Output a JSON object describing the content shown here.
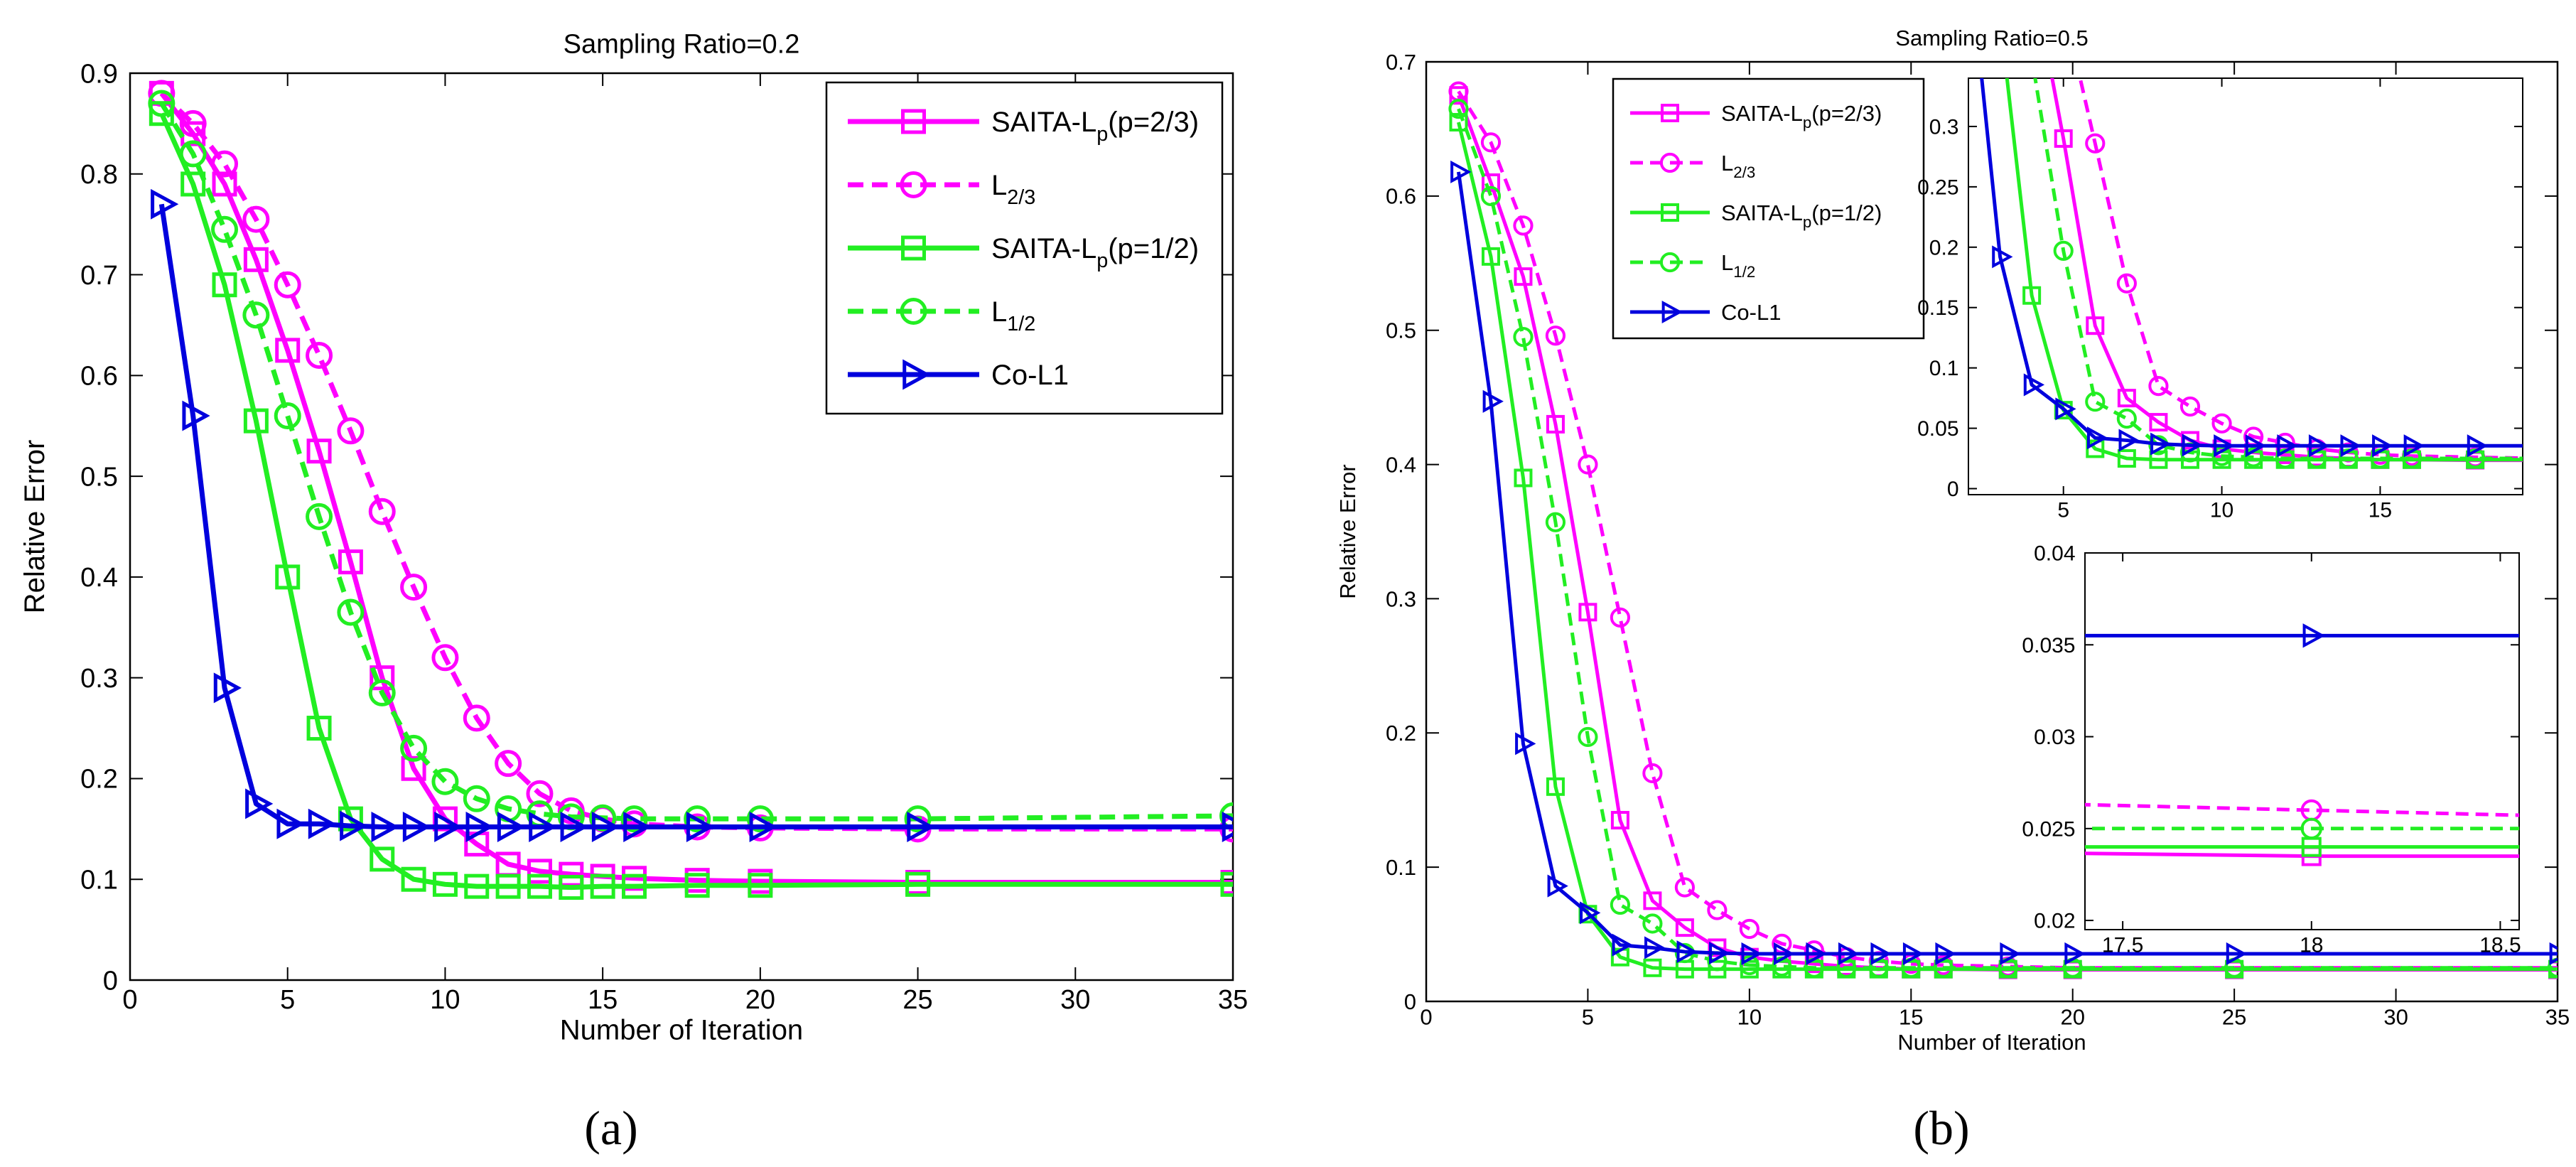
{
  "panels": [
    "(a)",
    "(b)"
  ],
  "colors": {
    "magenta": "#ff00ff",
    "green": "#22ee22",
    "blue": "#0000dd"
  },
  "chart_data": [
    {
      "type": "line",
      "title": "Sampling Ratio=0.2",
      "xlabel": "Number of Iteration",
      "ylabel": "Relative Error",
      "xlim": [
        0,
        35
      ],
      "ylim": [
        0,
        0.9
      ],
      "xticks": [
        0,
        5,
        10,
        15,
        20,
        25,
        30,
        35
      ],
      "yticks": [
        0,
        0.1,
        0.2,
        0.3,
        0.4,
        0.5,
        0.6,
        0.7,
        0.8,
        0.9
      ],
      "grid": false,
      "legend_position": "top-right",
      "series": [
        {
          "name": "SAITA-L",
          "sub": "p",
          "suffix": "(p=2/3)",
          "color": "magenta",
          "dash": false,
          "marker": "square",
          "x": [
            1,
            2,
            3,
            4,
            5,
            6,
            7,
            8,
            9,
            10,
            11,
            12,
            13,
            14,
            15,
            16,
            18,
            20,
            25,
            35
          ],
          "y": [
            0.88,
            0.84,
            0.79,
            0.715,
            0.625,
            0.525,
            0.415,
            0.3,
            0.21,
            0.16,
            0.135,
            0.115,
            0.108,
            0.105,
            0.103,
            0.101,
            0.099,
            0.098,
            0.097,
            0.097
          ]
        },
        {
          "name": "L",
          "sub": "2/3",
          "suffix": "",
          "color": "magenta",
          "dash": true,
          "marker": "circle",
          "x": [
            1,
            2,
            3,
            4,
            5,
            6,
            7,
            8,
            9,
            10,
            11,
            12,
            13,
            14,
            15,
            16,
            18,
            20,
            25,
            35
          ],
          "y": [
            0.88,
            0.85,
            0.81,
            0.755,
            0.69,
            0.62,
            0.545,
            0.465,
            0.39,
            0.32,
            0.26,
            0.215,
            0.185,
            0.168,
            0.16,
            0.155,
            0.152,
            0.151,
            0.15,
            0.15
          ]
        },
        {
          "name": "SAITA-L",
          "sub": "p",
          "suffix": "(p=1/2)",
          "color": "green",
          "dash": false,
          "marker": "square",
          "x": [
            1,
            2,
            3,
            4,
            5,
            6,
            7,
            8,
            9,
            10,
            11,
            12,
            13,
            14,
            15,
            16,
            18,
            20,
            25,
            35
          ],
          "y": [
            0.86,
            0.79,
            0.69,
            0.555,
            0.4,
            0.25,
            0.16,
            0.12,
            0.1,
            0.095,
            0.093,
            0.093,
            0.093,
            0.092,
            0.093,
            0.093,
            0.094,
            0.094,
            0.095,
            0.095
          ]
        },
        {
          "name": "L",
          "sub": "1/2",
          "suffix": "",
          "color": "green",
          "dash": true,
          "marker": "circle",
          "x": [
            1,
            2,
            3,
            4,
            5,
            6,
            7,
            8,
            9,
            10,
            11,
            12,
            13,
            14,
            15,
            16,
            18,
            20,
            25,
            35
          ],
          "y": [
            0.87,
            0.82,
            0.745,
            0.66,
            0.56,
            0.46,
            0.365,
            0.285,
            0.23,
            0.197,
            0.18,
            0.17,
            0.165,
            0.162,
            0.161,
            0.16,
            0.16,
            0.16,
            0.16,
            0.163
          ]
        },
        {
          "name": "Co-L1",
          "sub": "",
          "suffix": "",
          "color": "blue",
          "dash": false,
          "marker": "triangle",
          "x": [
            1,
            2,
            3,
            4,
            5,
            6,
            7,
            8,
            9,
            10,
            11,
            12,
            13,
            14,
            15,
            16,
            18,
            20,
            25,
            35
          ],
          "y": [
            0.77,
            0.56,
            0.29,
            0.175,
            0.155,
            0.155,
            0.153,
            0.152,
            0.152,
            0.152,
            0.152,
            0.152,
            0.152,
            0.152,
            0.152,
            0.152,
            0.152,
            0.152,
            0.152,
            0.152
          ]
        }
      ]
    },
    {
      "type": "line",
      "title": "Sampling Ratio=0.5",
      "xlabel": "Number of Iteration",
      "ylabel": "Relative Error",
      "xlim": [
        0,
        35
      ],
      "ylim": [
        0,
        0.7
      ],
      "xticks": [
        0,
        5,
        10,
        15,
        20,
        25,
        30,
        35
      ],
      "yticks": [
        0,
        0.1,
        0.2,
        0.3,
        0.4,
        0.5,
        0.6,
        0.7
      ],
      "grid": false,
      "legend_position": "top-left",
      "series": [
        {
          "name": "SAITA-L",
          "sub": "p",
          "suffix": "(p=2/3)",
          "color": "magenta",
          "dash": false,
          "marker": "square",
          "x": [
            1,
            2,
            3,
            4,
            5,
            6,
            7,
            8,
            9,
            10,
            11,
            12,
            13,
            14,
            15,
            16,
            18,
            20,
            25,
            35
          ],
          "y": [
            0.675,
            0.61,
            0.54,
            0.43,
            0.29,
            0.135,
            0.075,
            0.055,
            0.04,
            0.033,
            0.03,
            0.028,
            0.026,
            0.025,
            0.024,
            0.024,
            0.0235,
            0.0235,
            0.0235,
            0.0235
          ]
        },
        {
          "name": "L",
          "sub": "2/3",
          "suffix": "",
          "color": "magenta",
          "dash": true,
          "marker": "circle",
          "x": [
            1,
            2,
            3,
            4,
            5,
            6,
            7,
            8,
            9,
            10,
            11,
            12,
            13,
            14,
            15,
            16,
            18,
            20,
            25,
            35
          ],
          "y": [
            0.678,
            0.64,
            0.578,
            0.496,
            0.4,
            0.286,
            0.17,
            0.085,
            0.068,
            0.054,
            0.043,
            0.038,
            0.033,
            0.03,
            0.028,
            0.027,
            0.026,
            0.025,
            0.025,
            0.025
          ]
        },
        {
          "name": "SAITA-L",
          "sub": "p",
          "suffix": "(p=1/2)",
          "color": "green",
          "dash": false,
          "marker": "square",
          "x": [
            1,
            2,
            3,
            4,
            5,
            6,
            7,
            8,
            9,
            10,
            11,
            12,
            13,
            14,
            15,
            16,
            18,
            20,
            25,
            35
          ],
          "y": [
            0.655,
            0.555,
            0.39,
            0.16,
            0.065,
            0.033,
            0.025,
            0.024,
            0.024,
            0.024,
            0.024,
            0.024,
            0.024,
            0.024,
            0.024,
            0.024,
            0.024,
            0.024,
            0.024,
            0.024
          ]
        },
        {
          "name": "L",
          "sub": "1/2",
          "suffix": "",
          "color": "green",
          "dash": true,
          "marker": "circle",
          "x": [
            1,
            2,
            3,
            4,
            5,
            6,
            7,
            8,
            9,
            10,
            11,
            12,
            13,
            14,
            15,
            16,
            18,
            20,
            25,
            35
          ],
          "y": [
            0.665,
            0.6,
            0.495,
            0.357,
            0.197,
            0.072,
            0.058,
            0.036,
            0.03,
            0.027,
            0.026,
            0.025,
            0.025,
            0.025,
            0.025,
            0.025,
            0.025,
            0.025,
            0.025,
            0.025
          ]
        },
        {
          "name": "Co-L1",
          "sub": "",
          "suffix": "",
          "color": "blue",
          "dash": false,
          "marker": "triangle",
          "x": [
            1,
            2,
            3,
            4,
            5,
            6,
            7,
            8,
            9,
            10,
            11,
            12,
            13,
            14,
            15,
            16,
            18,
            20,
            25,
            35
          ],
          "y": [
            0.618,
            0.447,
            0.192,
            0.086,
            0.066,
            0.042,
            0.04,
            0.037,
            0.036,
            0.0355,
            0.0355,
            0.0355,
            0.0355,
            0.0355,
            0.0355,
            0.0355,
            0.0355,
            0.0355,
            0.0355,
            0.0355
          ]
        }
      ],
      "insets": [
        {
          "xlim": [
            2,
            19.5
          ],
          "ylim": [
            -0.005,
            0.34
          ],
          "xticks": [
            5,
            10,
            15
          ],
          "yticks": [
            0,
            0.05,
            0.1,
            0.15,
            0.2,
            0.25,
            0.3
          ]
        },
        {
          "xlim": [
            17.4,
            18.55
          ],
          "ylim": [
            0.0195,
            0.04
          ],
          "xticks": [
            17.5,
            18,
            18.5
          ],
          "yticks": [
            0.02,
            0.025,
            0.03,
            0.035,
            0.04
          ]
        }
      ]
    }
  ]
}
